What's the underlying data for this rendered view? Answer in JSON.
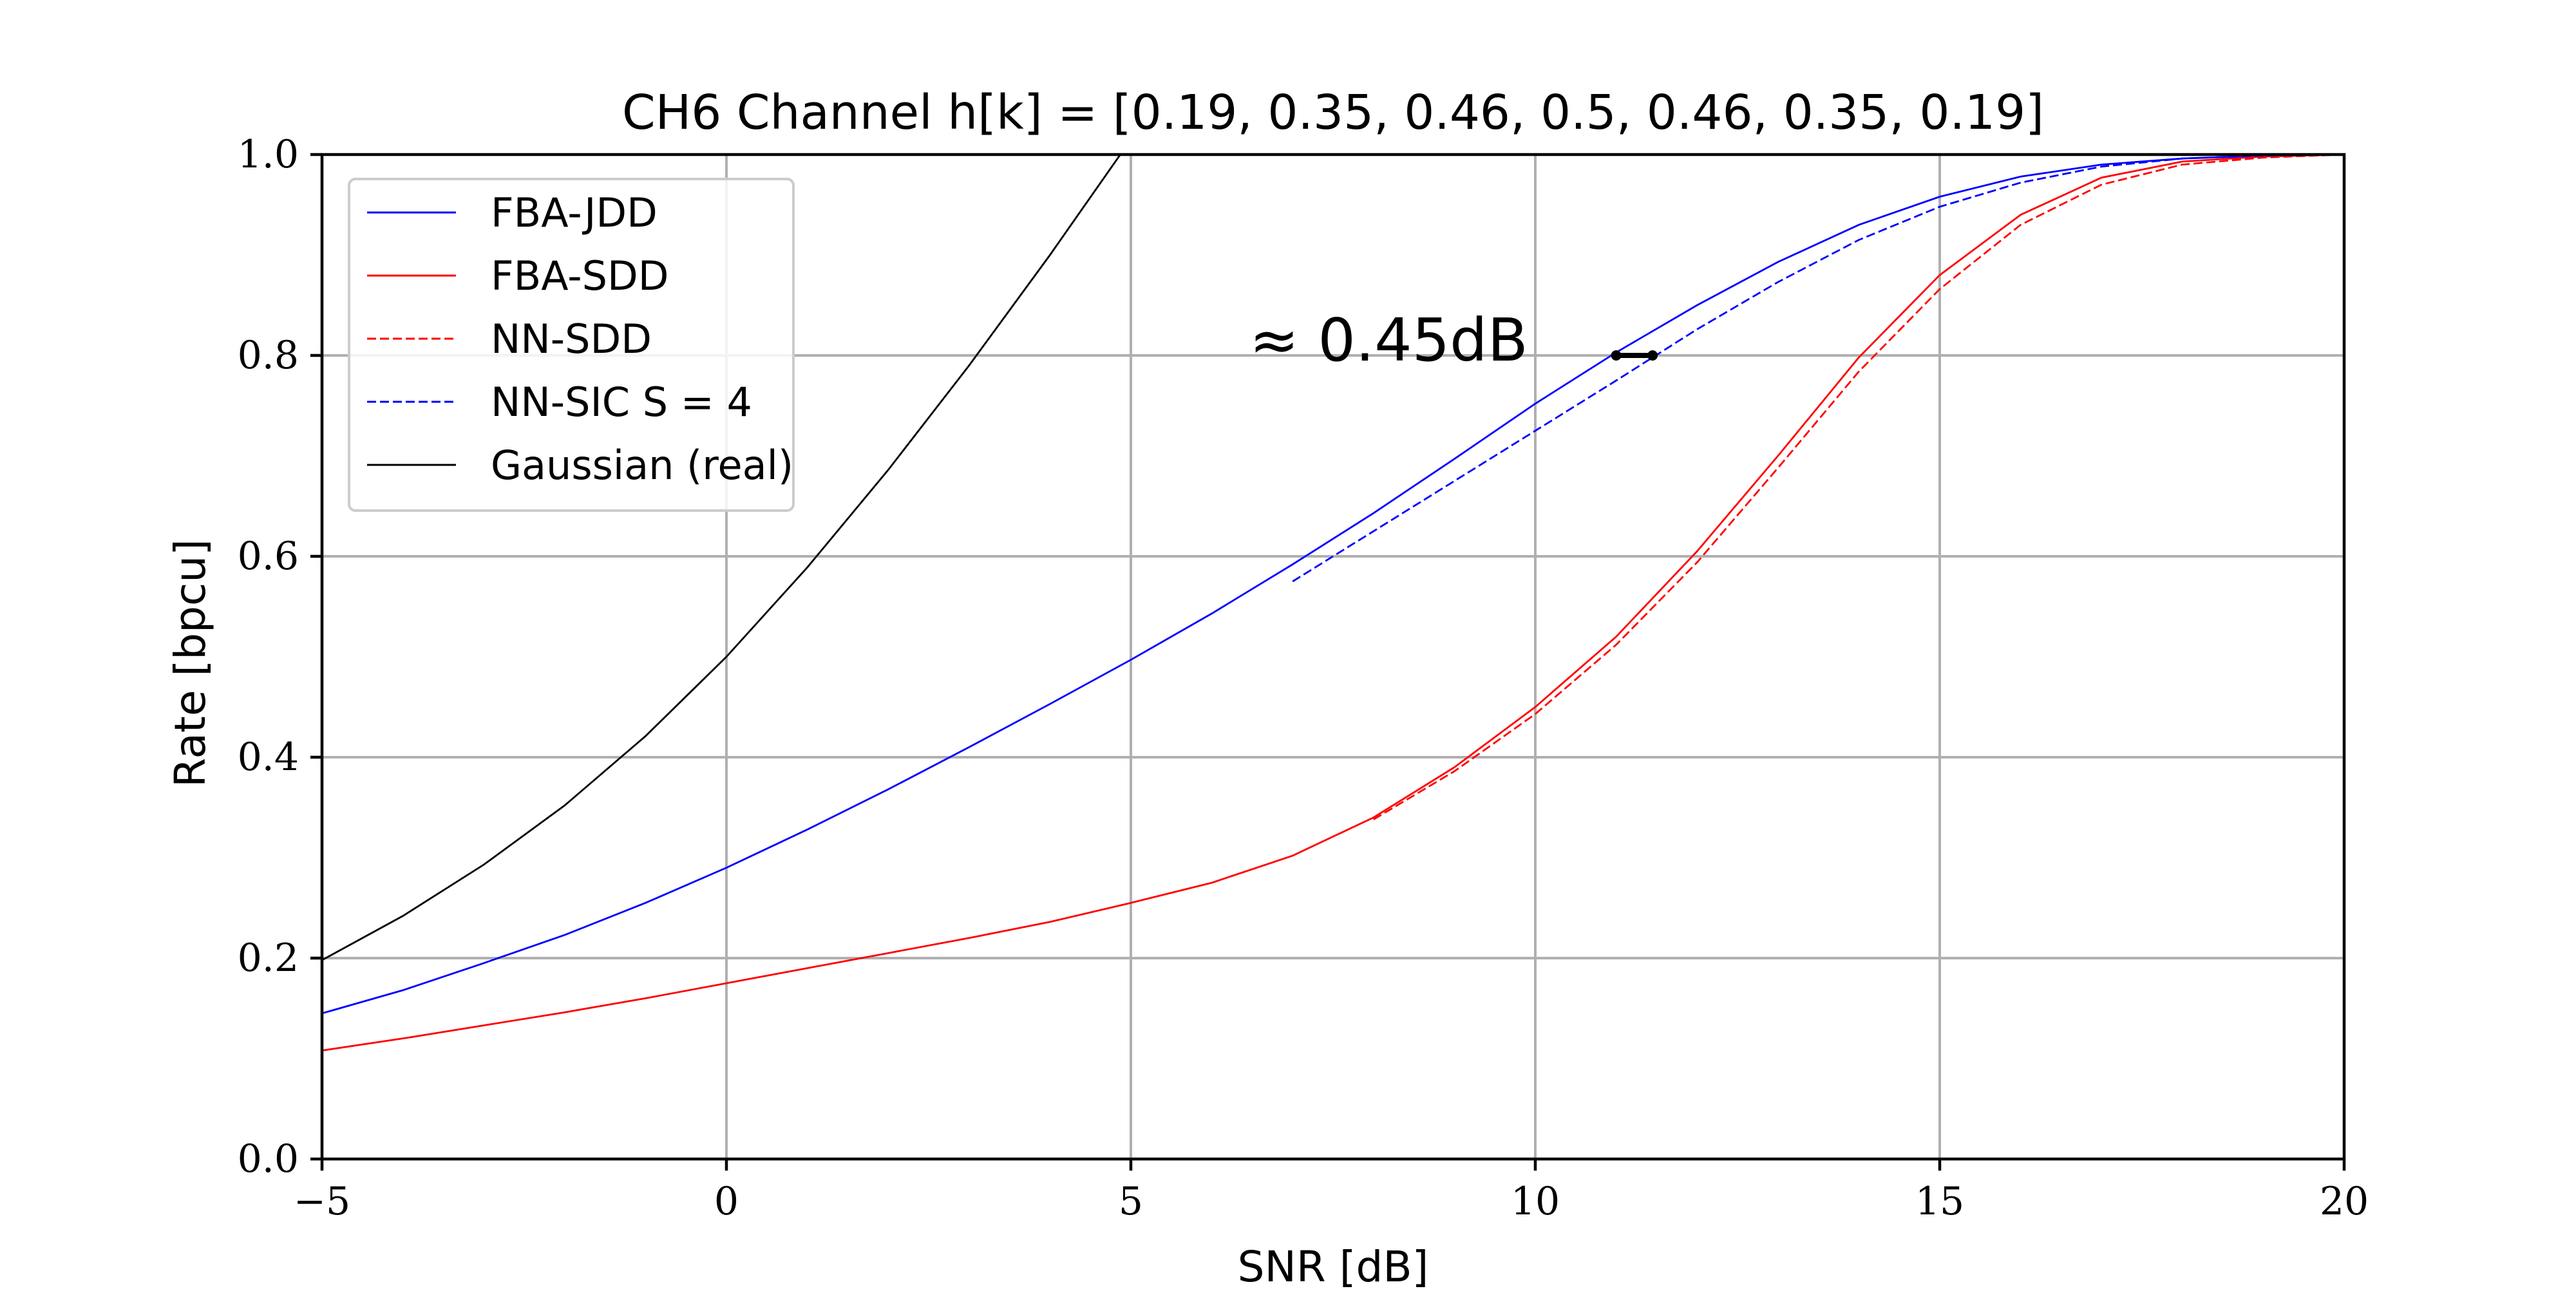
{
  "chart_data": {
    "type": "line",
    "title": "CH6 Channel h[k] = [0.19, 0.35, 0.46, 0.5, 0.46, 0.35, 0.19]",
    "xlabel": "SNR [dB]",
    "ylabel": "Rate [bpcu]",
    "xlim": [
      -5,
      20
    ],
    "ylim": [
      0,
      1.0
    ],
    "x_ticks": [
      -5,
      0,
      5,
      10,
      15,
      20
    ],
    "x_tick_labels": [
      "−5",
      "0",
      "5",
      "10",
      "15",
      "20"
    ],
    "y_ticks": [
      0,
      0.2,
      0.4,
      0.6,
      0.8,
      1.0
    ],
    "y_tick_labels": [
      "0.0",
      "0.2",
      "0.4",
      "0.6",
      "0.8",
      "1.0"
    ],
    "grid": true,
    "legend_position": "top-left",
    "series": [
      {
        "name": "FBA-JDD",
        "color": "#0000ff",
        "dash": "solid",
        "x": [
          -5,
          -4,
          -3,
          -2,
          -1,
          0,
          1,
          2,
          3,
          4,
          5,
          6,
          7,
          8,
          9,
          10,
          11,
          12,
          13,
          14,
          15,
          16,
          17,
          18,
          19,
          20
        ],
        "y": [
          0.145,
          0.168,
          0.195,
          0.223,
          0.255,
          0.29,
          0.328,
          0.368,
          0.41,
          0.453,
          0.497,
          0.543,
          0.592,
          0.643,
          0.697,
          0.752,
          0.803,
          0.85,
          0.893,
          0.93,
          0.958,
          0.978,
          0.99,
          0.996,
          0.999,
          1.0
        ]
      },
      {
        "name": "FBA-SDD",
        "color": "#ff0000",
        "dash": "solid",
        "x": [
          -5,
          -4,
          -3,
          -2,
          -1,
          0,
          1,
          2,
          3,
          4,
          5,
          6,
          7,
          8,
          9,
          10,
          11,
          12,
          13,
          14,
          15,
          16,
          17,
          18,
          19,
          20
        ],
        "y": [
          0.108,
          0.12,
          0.133,
          0.146,
          0.16,
          0.175,
          0.19,
          0.205,
          0.22,
          0.236,
          0.255,
          0.275,
          0.302,
          0.34,
          0.39,
          0.45,
          0.52,
          0.605,
          0.7,
          0.798,
          0.88,
          0.94,
          0.977,
          0.993,
          0.998,
          1.0
        ]
      },
      {
        "name": "NN-SDD",
        "color": "#ff0000",
        "dash": "dashed",
        "x": [
          8,
          9,
          10,
          11,
          12,
          13,
          14,
          15,
          16,
          17,
          18,
          19,
          20
        ],
        "y": [
          0.338,
          0.386,
          0.443,
          0.512,
          0.594,
          0.688,
          0.784,
          0.866,
          0.93,
          0.97,
          0.99,
          0.997,
          1.0
        ]
      },
      {
        "name": "NN-SIC S = 4",
        "color": "#0000ff",
        "dash": "dashed",
        "x": [
          7,
          8,
          9,
          10,
          11,
          12,
          13,
          14,
          15,
          16,
          17,
          18,
          19,
          20
        ],
        "y": [
          0.575,
          0.625,
          0.675,
          0.725,
          0.775,
          0.826,
          0.873,
          0.915,
          0.948,
          0.972,
          0.988,
          0.996,
          0.999,
          1.0
        ]
      },
      {
        "name": "Gaussian (real)",
        "color": "#000000",
        "dash": "solid",
        "x": [
          -5,
          -4,
          -3,
          -2,
          -1,
          0,
          1,
          2,
          3,
          4,
          5
        ],
        "y": [
          0.198,
          0.242,
          0.293,
          0.352,
          0.421,
          0.5,
          0.589,
          0.686,
          0.79,
          0.9,
          1.015
        ]
      }
    ],
    "annotation": {
      "text": "≈ 0.45dB",
      "arrow_from": [
        11.0,
        0.8
      ],
      "arrow_to": [
        11.45,
        0.8
      ]
    }
  }
}
